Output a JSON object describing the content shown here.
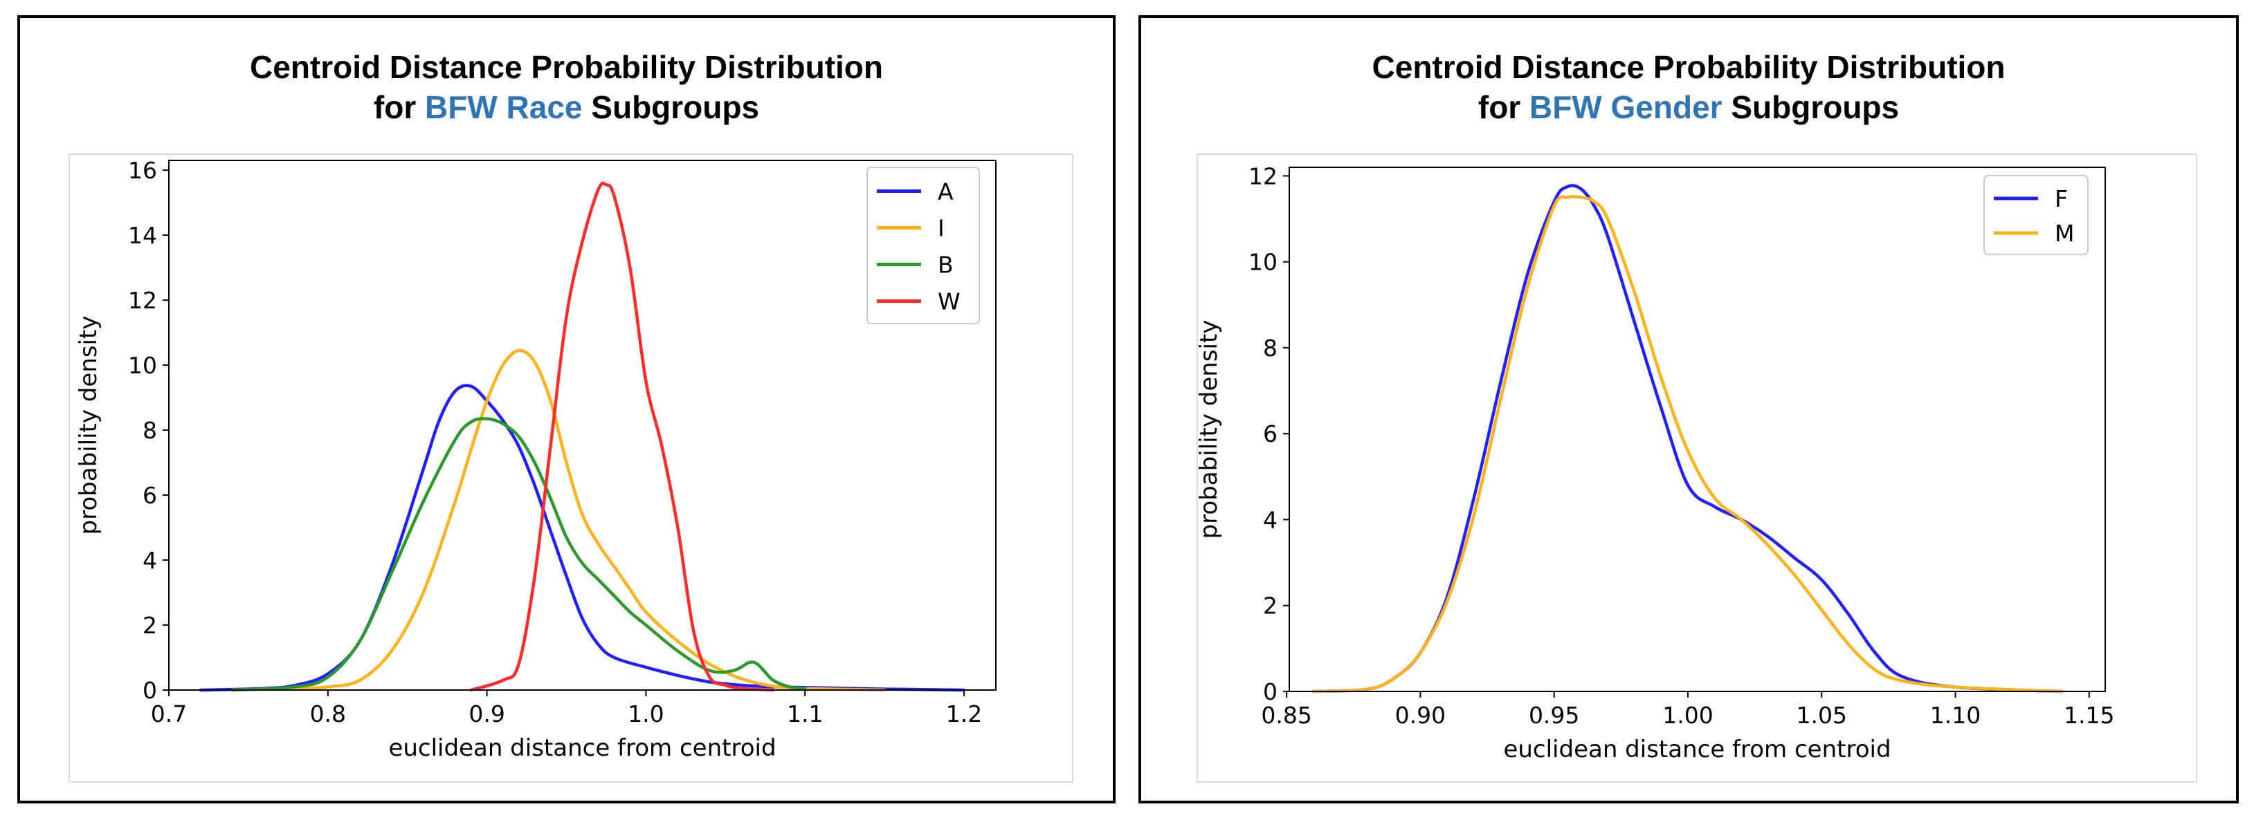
{
  "chart_data": [
    {
      "type": "line",
      "title_line1": "Centroid Distance Probability Distribution",
      "title_pre": "for ",
      "title_highlight": "BFW Race",
      "title_post": " Subgroups",
      "highlight_color": "#2e75b6",
      "xlabel": "euclidean distance from centroid",
      "ylabel": "probability density",
      "xlim": [
        0.7,
        1.22
      ],
      "ylim": [
        0,
        16.3
      ],
      "xticks": [
        0.7,
        0.8,
        0.9,
        1.0,
        1.1,
        1.2
      ],
      "xtick_labels": [
        "0.7",
        "0.8",
        "0.9",
        "1.0",
        "1.1",
        "1.2"
      ],
      "yticks": [
        0,
        2,
        4,
        6,
        8,
        10,
        12,
        14,
        16
      ],
      "ytick_labels": [
        "0",
        "2",
        "4",
        "6",
        "8",
        "10",
        "12",
        "14",
        "16"
      ],
      "legend_position": "top-right",
      "series": [
        {
          "name": "A",
          "color": "#1f1fff",
          "x": [
            0.72,
            0.76,
            0.78,
            0.8,
            0.82,
            0.84,
            0.86,
            0.87,
            0.88,
            0.89,
            0.9,
            0.91,
            0.92,
            0.93,
            0.94,
            0.95,
            0.96,
            0.97,
            0.98,
            1.0,
            1.02,
            1.04,
            1.06,
            1.08,
            1.1,
            1.15,
            1.2
          ],
          "y": [
            0.0,
            0.05,
            0.15,
            0.5,
            1.5,
            3.8,
            6.8,
            8.3,
            9.2,
            9.35,
            8.9,
            8.3,
            7.5,
            6.3,
            4.9,
            3.5,
            2.2,
            1.4,
            1.0,
            0.7,
            0.45,
            0.25,
            0.15,
            0.1,
            0.08,
            0.03,
            0.0
          ]
        },
        {
          "name": "I",
          "color": "#ffb11a",
          "x": [
            0.74,
            0.78,
            0.8,
            0.82,
            0.84,
            0.86,
            0.88,
            0.89,
            0.9,
            0.91,
            0.92,
            0.93,
            0.94,
            0.95,
            0.96,
            0.97,
            0.98,
            0.99,
            1.0,
            1.02,
            1.04,
            1.06,
            1.08,
            1.1,
            1.15
          ],
          "y": [
            0.0,
            0.05,
            0.1,
            0.3,
            1.2,
            3.0,
            5.8,
            7.4,
            8.9,
            10.0,
            10.45,
            10.1,
            8.9,
            7.0,
            5.4,
            4.5,
            3.8,
            3.1,
            2.4,
            1.5,
            0.8,
            0.35,
            0.12,
            0.05,
            0.0
          ]
        },
        {
          "name": "B",
          "color": "#2a9a2a",
          "x": [
            0.74,
            0.78,
            0.8,
            0.82,
            0.84,
            0.86,
            0.88,
            0.89,
            0.9,
            0.91,
            0.92,
            0.93,
            0.94,
            0.95,
            0.96,
            0.97,
            0.98,
            0.99,
            1.0,
            1.02,
            1.04,
            1.055,
            1.065,
            1.07,
            1.075,
            1.08,
            1.09,
            1.1
          ],
          "y": [
            0.0,
            0.1,
            0.4,
            1.5,
            3.6,
            5.8,
            7.7,
            8.25,
            8.35,
            8.2,
            7.8,
            7.0,
            5.9,
            4.7,
            3.9,
            3.4,
            2.9,
            2.4,
            2.0,
            1.2,
            0.6,
            0.6,
            0.85,
            0.8,
            0.55,
            0.3,
            0.1,
            0.05
          ]
        },
        {
          "name": "W",
          "color": "#ff2a2a",
          "x": [
            0.89,
            0.91,
            0.92,
            0.93,
            0.94,
            0.95,
            0.96,
            0.97,
            0.975,
            0.98,
            0.99,
            1.0,
            1.01,
            1.02,
            1.03,
            1.04,
            1.05,
            1.06,
            1.08
          ],
          "y": [
            0.0,
            0.3,
            0.8,
            3.5,
            7.5,
            11.5,
            13.8,
            15.4,
            15.55,
            15.2,
            13.0,
            9.5,
            7.5,
            5.0,
            1.8,
            0.4,
            0.15,
            0.05,
            0.0
          ]
        }
      ]
    },
    {
      "type": "line",
      "title_line1": "Centroid Distance Probability Distribution",
      "title_pre": "for ",
      "title_highlight": "BFW Gender",
      "title_post": " Subgroups",
      "highlight_color": "#2e75b6",
      "xlabel": "euclidean distance from centroid",
      "ylabel": "probability density",
      "xlim": [
        0.851,
        1.156
      ],
      "ylim": [
        0,
        12.2
      ],
      "xticks": [
        0.85,
        0.9,
        0.95,
        1.0,
        1.05,
        1.1,
        1.15
      ],
      "xtick_labels": [
        "0.85",
        "0.90",
        "0.95",
        "1.00",
        "1.05",
        "1.10",
        "1.15"
      ],
      "yticks": [
        0,
        2,
        4,
        6,
        8,
        10,
        12
      ],
      "ytick_labels": [
        "0",
        "2",
        "4",
        "6",
        "8",
        "10",
        "12"
      ],
      "legend_position": "top-right",
      "series": [
        {
          "name": "F",
          "color": "#1f1fff",
          "x": [
            0.86,
            0.88,
            0.89,
            0.9,
            0.91,
            0.92,
            0.93,
            0.94,
            0.95,
            0.955,
            0.96,
            0.965,
            0.97,
            0.98,
            0.99,
            1.0,
            1.01,
            1.02,
            1.03,
            1.04,
            1.05,
            1.06,
            1.07,
            1.08,
            1.1,
            1.14
          ],
          "y": [
            0.0,
            0.05,
            0.3,
            0.9,
            2.2,
            4.5,
            7.2,
            9.7,
            11.4,
            11.75,
            11.7,
            11.3,
            10.6,
            8.6,
            6.6,
            4.8,
            4.3,
            4.0,
            3.6,
            3.1,
            2.6,
            1.8,
            0.9,
            0.35,
            0.1,
            0.0
          ]
        },
        {
          "name": "M",
          "color": "#ffb11a",
          "x": [
            0.86,
            0.88,
            0.89,
            0.9,
            0.91,
            0.92,
            0.93,
            0.94,
            0.95,
            0.955,
            0.96,
            0.965,
            0.97,
            0.98,
            0.99,
            1.0,
            1.01,
            1.02,
            1.03,
            1.04,
            1.05,
            1.06,
            1.07,
            1.08,
            1.1,
            1.14
          ],
          "y": [
            0.0,
            0.05,
            0.3,
            0.9,
            2.1,
            4.1,
            6.8,
            9.4,
            11.3,
            11.5,
            11.5,
            11.4,
            11.0,
            9.3,
            7.3,
            5.6,
            4.5,
            4.0,
            3.4,
            2.7,
            1.9,
            1.1,
            0.5,
            0.25,
            0.1,
            0.0
          ]
        }
      ]
    }
  ]
}
